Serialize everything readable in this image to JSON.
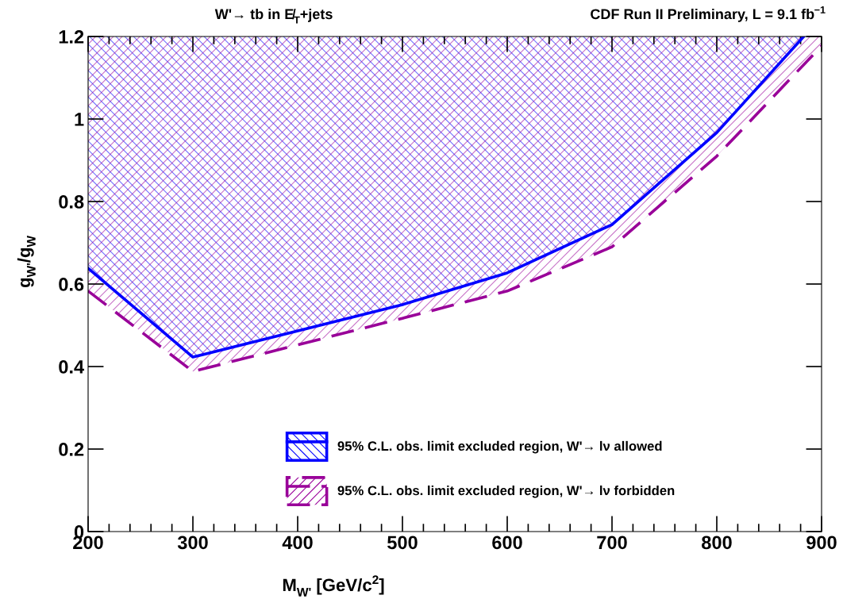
{
  "chart_data": {
    "type": "line",
    "title": "W'→ tb in E̸$_{T}$+jets",
    "subtitle": "CDF Run II Preliminary, L = 9.1 fb$^{−1}$",
    "xlabel": "M$_{W'}$ [GeV/c$^{2}$]",
    "ylabel": "g$_{W'}$/g$_{W}$",
    "xlim": [
      200,
      900
    ],
    "xticks": [
      200,
      300,
      400,
      500,
      600,
      700,
      800,
      900
    ],
    "ylim": [
      0,
      1.2
    ],
    "yticks": [
      0,
      0.2,
      0.4,
      0.6,
      0.8,
      1,
      1.2
    ],
    "series": [
      {
        "name": "95% C.L. obs. limit excluded region, W'→ lν allowed",
        "color": "#0000ff",
        "line_style": "solid",
        "x": [
          200,
          300,
          500,
          600,
          700,
          800,
          883
        ],
        "values": [
          0.638,
          0.423,
          0.55,
          0.627,
          0.744,
          0.967,
          1.2
        ],
        "lower": [
          0.638,
          0.423,
          0.55,
          0.627,
          0.744,
          0.967,
          1.2
        ],
        "upper": [
          1.2,
          1.2,
          1.2,
          1.2,
          1.2,
          1.2,
          1.2
        ]
      },
      {
        "name": "95% C.L. obs. limit excluded region, W'→ lν forbidden",
        "color": "#990099",
        "line_style": "dashed",
        "x": [
          200,
          300,
          500,
          600,
          700,
          800,
          900
        ],
        "values": [
          0.583,
          0.388,
          0.517,
          0.583,
          0.69,
          0.91,
          1.177
        ],
        "lower": [
          0.583,
          0.388,
          0.517,
          0.583,
          0.69,
          0.91,
          1.177
        ],
        "upper": [
          1.2,
          1.2,
          1.2,
          1.2,
          1.2,
          1.2,
          1.2
        ]
      }
    ],
    "marker": "none",
    "grid": false,
    "legend": "bottom right"
  }
}
